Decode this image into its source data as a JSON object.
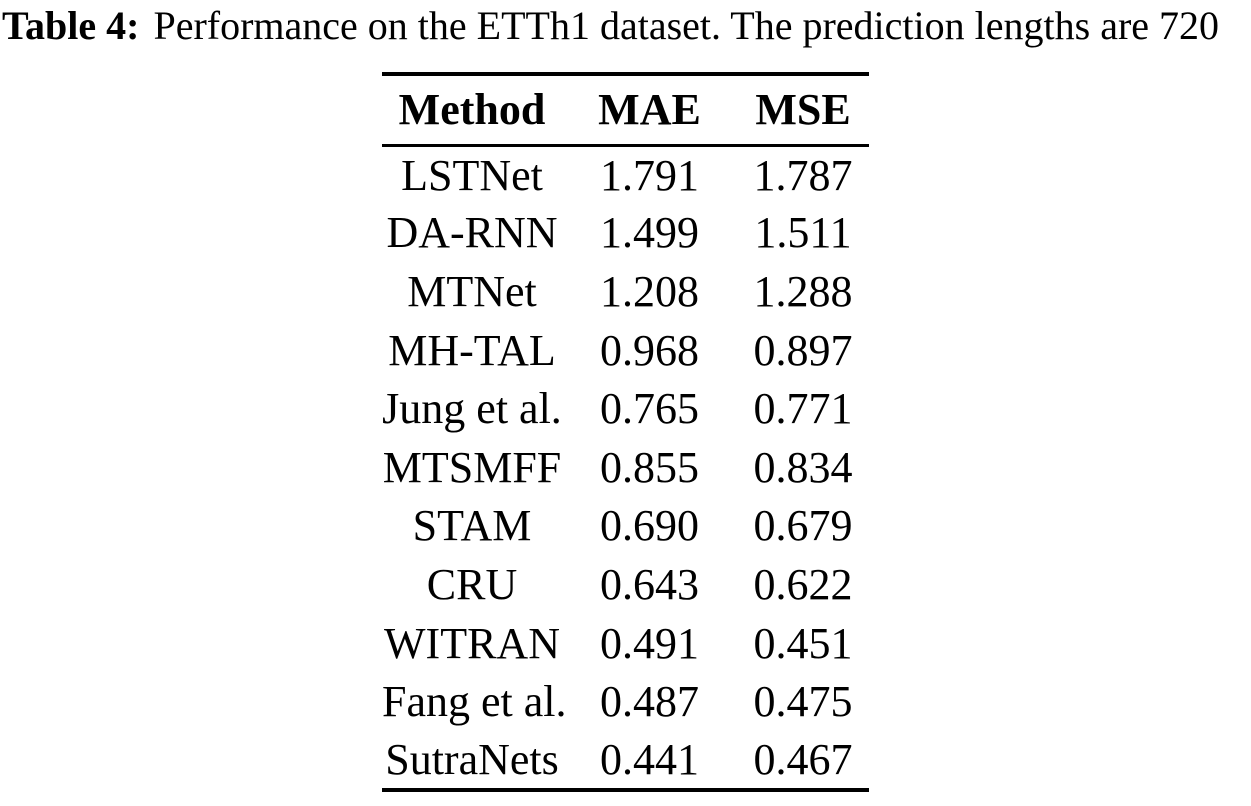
{
  "colors": {
    "background": "#ffffff",
    "text": "#000000",
    "rule": "#000000"
  },
  "caption": {
    "label": "Table 4:",
    "text": "Performance on the ETTh1 dataset. The prediction lengths are 720"
  },
  "table": {
    "columns": {
      "method": "Method",
      "mae": "MAE",
      "mse": "MSE"
    },
    "rows": [
      {
        "method": "LSTNet",
        "mae": "1.791",
        "mse": "1.787"
      },
      {
        "method": "DA-RNN",
        "mae": "1.499",
        "mse": "1.511"
      },
      {
        "method": "MTNet",
        "mae": "1.208",
        "mse": "1.288"
      },
      {
        "method": "MH-TAL",
        "mae": "0.968",
        "mse": "0.897"
      },
      {
        "method": "Jung et al.",
        "mae": "0.765",
        "mse": "0.771"
      },
      {
        "method": "MTSMFF",
        "mae": "0.855",
        "mse": "0.834"
      },
      {
        "method": "STAM",
        "mae": "0.690",
        "mse": "0.679"
      },
      {
        "method": "CRU",
        "mae": "0.643",
        "mse": "0.622"
      },
      {
        "method": "WITRAN",
        "mae": "0.491",
        "mse": "0.451"
      },
      {
        "method": "Fang et al.",
        "mae": "0.487",
        "mse": "0.475"
      },
      {
        "method": "SutraNets",
        "mae": "0.441",
        "mse": "0.467"
      }
    ]
  },
  "chart_data": {
    "type": "table",
    "title": "Table 4: Performance on the ETTh1 dataset. The prediction lengths are 720",
    "columns": [
      "Method",
      "MAE",
      "MSE"
    ],
    "rows": [
      [
        "LSTNet",
        1.791,
        1.787
      ],
      [
        "DA-RNN",
        1.499,
        1.511
      ],
      [
        "MTNet",
        1.208,
        1.288
      ],
      [
        "MH-TAL",
        0.968,
        0.897
      ],
      [
        "Jung et al.",
        0.765,
        0.771
      ],
      [
        "MTSMFF",
        0.855,
        0.834
      ],
      [
        "STAM",
        0.69,
        0.679
      ],
      [
        "CRU",
        0.643,
        0.622
      ],
      [
        "WITRAN",
        0.491,
        0.451
      ],
      [
        "Fang et al.",
        0.487,
        0.475
      ],
      [
        "SutraNets",
        0.441,
        0.467
      ]
    ]
  }
}
